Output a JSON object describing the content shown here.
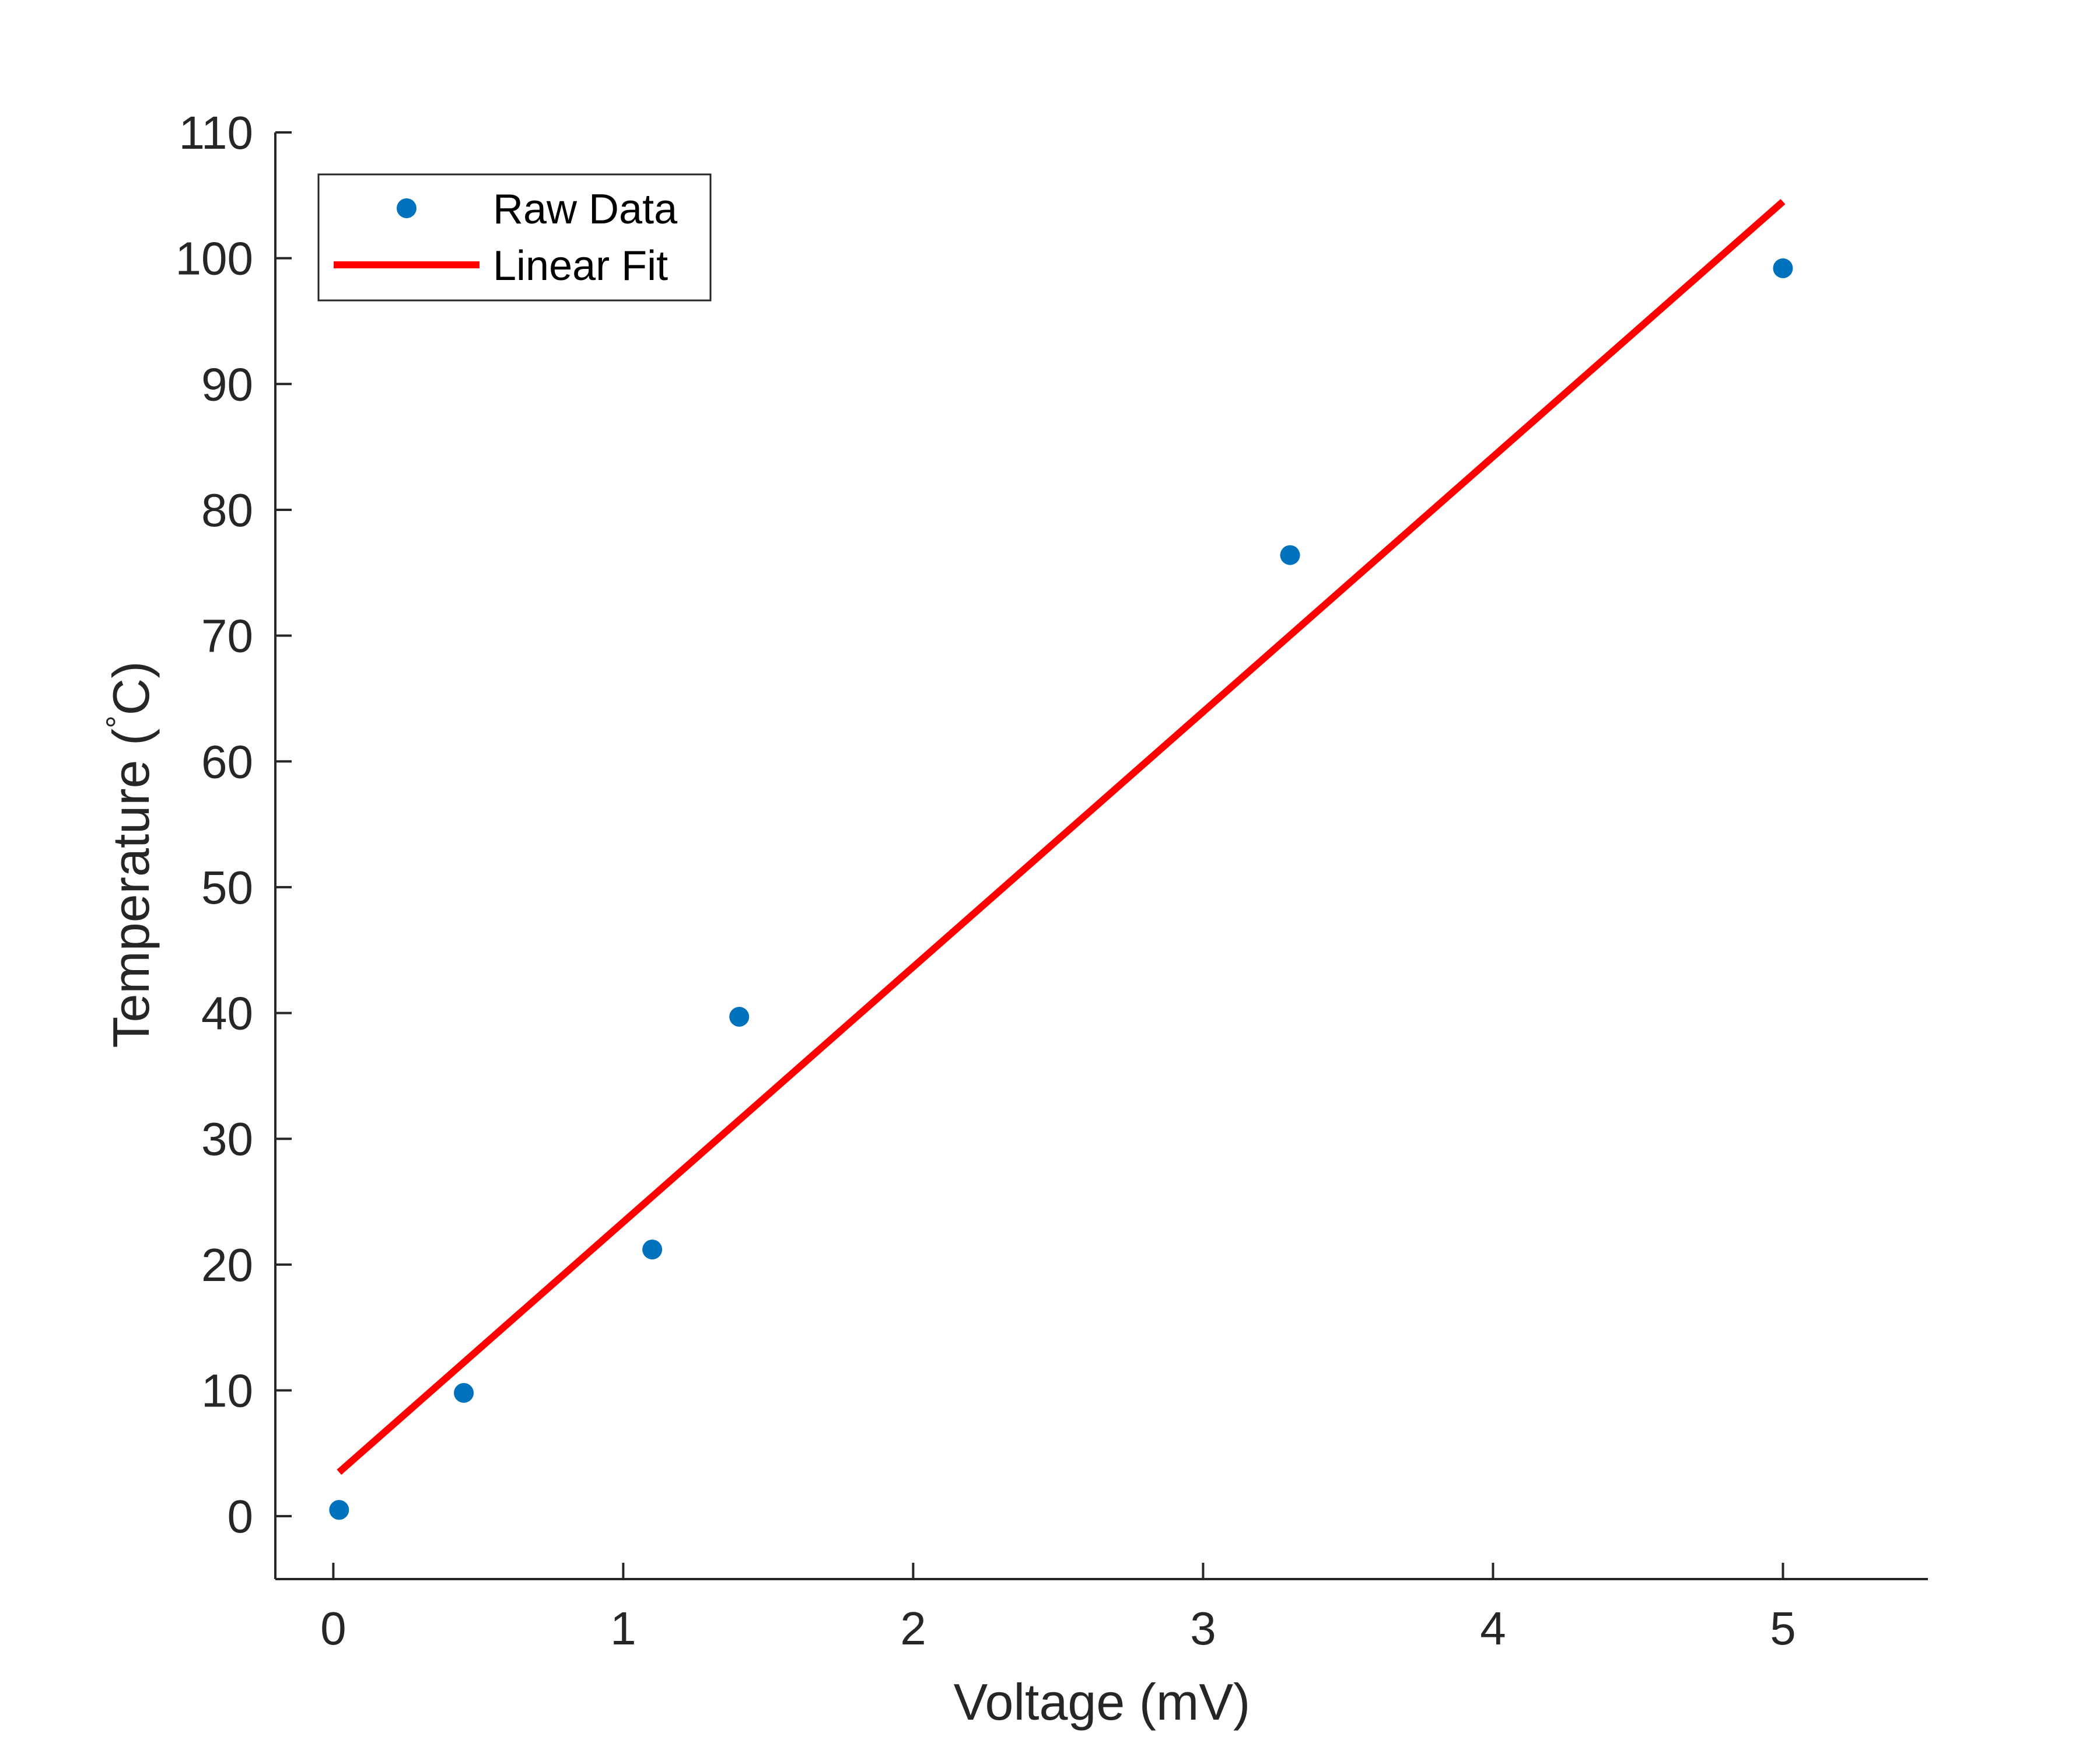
{
  "chart_data": {
    "type": "scatter",
    "xlabel": "Voltage (mV)",
    "ylabel_prefix": "Temperature (",
    "ylabel_degree": "°",
    "ylabel_suffix": "C)",
    "xlim": [
      -0.2,
      5.5
    ],
    "ylim": [
      -5,
      110
    ],
    "xticks": [
      0,
      1,
      2,
      3,
      4,
      5
    ],
    "yticks": [
      0,
      10,
      20,
      30,
      40,
      50,
      60,
      70,
      80,
      90,
      100,
      110
    ],
    "grid": false,
    "legend_position": "top-left",
    "series": [
      {
        "name": "Raw Data",
        "kind": "points",
        "color": "#0072BD",
        "points": [
          {
            "x": 0.02,
            "y": 0.5
          },
          {
            "x": 0.45,
            "y": 9.8
          },
          {
            "x": 1.1,
            "y": 21.2
          },
          {
            "x": 1.4,
            "y": 39.7
          },
          {
            "x": 3.3,
            "y": 76.4
          },
          {
            "x": 5.0,
            "y": 99.2
          }
        ]
      },
      {
        "name": "Linear Fit",
        "kind": "line",
        "color": "#FF0000",
        "points": [
          {
            "x": 0.02,
            "y": 3.5
          },
          {
            "x": 5.0,
            "y": 104.5
          }
        ]
      }
    ]
  }
}
